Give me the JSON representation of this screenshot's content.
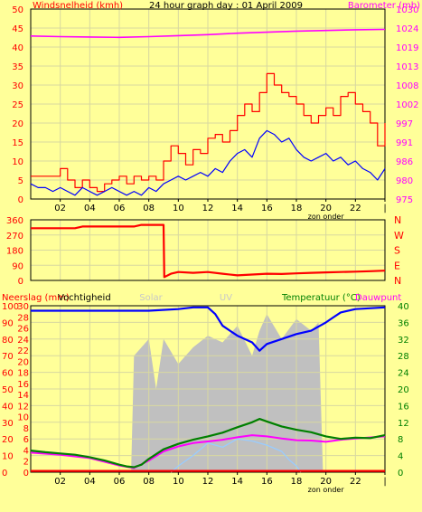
{
  "title": "24 hour graph day : 01 April 2009",
  "colors": {
    "background": "#ffff99",
    "plot_bg": "#ffff99",
    "grid": "#d8d8a0",
    "frame": "#000000",
    "wind": "#0000ff",
    "gust": "#ff0000",
    "pressure": "#ff00ff",
    "direction": "#ff0000",
    "humidity": "#0000ff",
    "solar": "#c0c0c0",
    "temperature": "#008000",
    "dewpoint": "#ff00ff",
    "apparent": "#99ccff",
    "rain": "#ff0000",
    "uv_label": "#c8c8c8"
  },
  "chart_data": [
    {
      "type": "line",
      "title": "24 hour graph day : 01 April 2009",
      "ylabel_left": "Windsnelheid (kmh)",
      "ylabel_right": "Barometer (mb)",
      "ylim": [
        0,
        50
      ],
      "yticks_left": [
        "0",
        "5",
        "10",
        "15",
        "20",
        "25",
        "30",
        "35",
        "40",
        "45",
        "50"
      ],
      "yticks_right": [
        "975",
        "980",
        "986",
        "991",
        "997",
        "1002",
        "1008",
        "1013",
        "1019",
        "1024",
        "1030"
      ],
      "right_ylim": [
        975,
        1030
      ],
      "x_range": [
        0,
        24
      ],
      "xticks": [
        "02",
        "04",
        "06",
        "08",
        "10",
        "12",
        "14",
        "16",
        "18",
        "20",
        "22",
        "|"
      ],
      "xlabel": "zon onder",
      "sunset_marker": 20,
      "series": [
        {
          "name": "wind",
          "axis": "left",
          "points": [
            [
              0,
              4
            ],
            [
              0.5,
              3
            ],
            [
              1,
              3
            ],
            [
              1.5,
              2
            ],
            [
              2,
              3
            ],
            [
              2.5,
              2
            ],
            [
              3,
              1
            ],
            [
              3.5,
              3
            ],
            [
              4,
              2
            ],
            [
              4.5,
              1
            ],
            [
              5,
              2
            ],
            [
              5.5,
              3
            ],
            [
              6,
              2
            ],
            [
              6.5,
              1
            ],
            [
              7,
              2
            ],
            [
              7.5,
              1
            ],
            [
              8,
              3
            ],
            [
              8.5,
              2
            ],
            [
              9,
              4
            ],
            [
              9.5,
              5
            ],
            [
              10,
              6
            ],
            [
              10.5,
              5
            ],
            [
              11,
              6
            ],
            [
              11.5,
              7
            ],
            [
              12,
              6
            ],
            [
              12.5,
              8
            ],
            [
              13,
              7
            ],
            [
              13.5,
              10
            ],
            [
              14,
              12
            ],
            [
              14.5,
              13
            ],
            [
              15,
              11
            ],
            [
              15.5,
              16
            ],
            [
              16,
              18
            ],
            [
              16.5,
              17
            ],
            [
              17,
              15
            ],
            [
              17.5,
              16
            ],
            [
              18,
              13
            ],
            [
              18.5,
              11
            ],
            [
              19,
              10
            ],
            [
              19.5,
              11
            ],
            [
              20,
              12
            ],
            [
              20.5,
              10
            ],
            [
              21,
              11
            ],
            [
              21.5,
              9
            ],
            [
              22,
              10
            ],
            [
              22.5,
              8
            ],
            [
              23,
              7
            ],
            [
              23.5,
              5
            ],
            [
              24,
              8
            ]
          ]
        },
        {
          "name": "gust",
          "axis": "left",
          "points": [
            [
              0,
              6
            ],
            [
              0.5,
              6
            ],
            [
              1,
              6
            ],
            [
              1.5,
              6
            ],
            [
              2,
              8
            ],
            [
              2.5,
              5
            ],
            [
              3,
              3
            ],
            [
              3.5,
              5
            ],
            [
              4,
              3
            ],
            [
              4.5,
              2
            ],
            [
              5,
              4
            ],
            [
              5.5,
              5
            ],
            [
              6,
              6
            ],
            [
              6.5,
              4
            ],
            [
              7,
              6
            ],
            [
              7.5,
              5
            ],
            [
              8,
              6
            ],
            [
              8.5,
              5
            ],
            [
              9,
              10
            ],
            [
              9.5,
              14
            ],
            [
              10,
              12
            ],
            [
              10.5,
              9
            ],
            [
              11,
              13
            ],
            [
              11.5,
              12
            ],
            [
              12,
              16
            ],
            [
              12.5,
              17
            ],
            [
              13,
              15
            ],
            [
              13.5,
              18
            ],
            [
              14,
              22
            ],
            [
              14.5,
              25
            ],
            [
              15,
              23
            ],
            [
              15.5,
              28
            ],
            [
              16,
              33
            ],
            [
              16.5,
              30
            ],
            [
              17,
              28
            ],
            [
              17.5,
              27
            ],
            [
              18,
              25
            ],
            [
              18.5,
              22
            ],
            [
              19,
              20
            ],
            [
              19.5,
              22
            ],
            [
              20,
              24
            ],
            [
              20.5,
              22
            ],
            [
              21,
              27
            ],
            [
              21.5,
              28
            ],
            [
              22,
              25
            ],
            [
              22.5,
              23
            ],
            [
              23,
              20
            ],
            [
              23.5,
              14
            ],
            [
              24,
              20
            ]
          ]
        },
        {
          "name": "pressure",
          "axis": "right",
          "points": [
            [
              0,
              1022.2
            ],
            [
              2,
              1022.0
            ],
            [
              4,
              1021.9
            ],
            [
              6,
              1021.8
            ],
            [
              8,
              1022.0
            ],
            [
              10,
              1022.3
            ],
            [
              12,
              1022.6
            ],
            [
              14,
              1023.0
            ],
            [
              16,
              1023.3
            ],
            [
              18,
              1023.6
            ],
            [
              20,
              1023.8
            ],
            [
              22,
              1024.0
            ],
            [
              24,
              1024.1
            ]
          ]
        }
      ]
    },
    {
      "type": "line",
      "ylabel_left": "",
      "yticks_left": [
        "0",
        "90",
        "180",
        "270",
        "360"
      ],
      "yticks_right": [
        "N",
        "E",
        "S",
        "W",
        "N"
      ],
      "ylim": [
        0,
        360
      ],
      "x_range": [
        0,
        24
      ],
      "series": [
        {
          "name": "direction",
          "points": [
            [
              0,
              310
            ],
            [
              3,
              310
            ],
            [
              3.5,
              320
            ],
            [
              7,
              320
            ],
            [
              7.5,
              330
            ],
            [
              9,
              330
            ],
            [
              9.05,
              20
            ],
            [
              9.5,
              40
            ],
            [
              10,
              50
            ],
            [
              11,
              45
            ],
            [
              12,
              50
            ],
            [
              13,
              40
            ],
            [
              14,
              30
            ],
            [
              15,
              35
            ],
            [
              16,
              40
            ],
            [
              17,
              38
            ],
            [
              18,
              42
            ],
            [
              19,
              45
            ],
            [
              20,
              48
            ],
            [
              21,
              50
            ],
            [
              22,
              52
            ],
            [
              23,
              55
            ],
            [
              24,
              58
            ]
          ]
        }
      ]
    },
    {
      "type": "line",
      "labels_top": [
        "Neerslag (mm)",
        "Vochtigheid",
        "Solar",
        "UV",
        "Temperatuur (°C)",
        "Dauwpunt"
      ],
      "yticks_left": [
        "0",
        "10",
        "20",
        "30",
        "40",
        "50",
        "60",
        "70",
        "80",
        "90",
        "100"
      ],
      "yticks_left_inner": [
        "0",
        "2",
        "4",
        "6",
        "8",
        "10",
        "12",
        "14",
        "16",
        "18",
        "20",
        "22",
        "24",
        "26",
        "28",
        "30"
      ],
      "yticks_right": [
        "0",
        "4",
        "8",
        "12",
        "16",
        "20",
        "24",
        "28",
        "32",
        "36",
        "40"
      ],
      "ylim": [
        0,
        100
      ],
      "right_ylim": [
        0,
        40
      ],
      "x_range": [
        0,
        24
      ],
      "xticks": [
        "02",
        "04",
        "06",
        "08",
        "10",
        "12",
        "14",
        "16",
        "18",
        "20",
        "22",
        "|"
      ],
      "xlabel": "zon onder",
      "series": [
        {
          "name": "humidity",
          "axis": "left",
          "points": [
            [
              0,
              97
            ],
            [
              4,
              97
            ],
            [
              8,
              97
            ],
            [
              10,
              98
            ],
            [
              11,
              99
            ],
            [
              12,
              99
            ],
            [
              12.5,
              95
            ],
            [
              13,
              88
            ],
            [
              14,
              82
            ],
            [
              15,
              78
            ],
            [
              15.5,
              73
            ],
            [
              16,
              77
            ],
            [
              17,
              80
            ],
            [
              18,
              83
            ],
            [
              19,
              85
            ],
            [
              20,
              90
            ],
            [
              20.5,
              93
            ],
            [
              21,
              96
            ],
            [
              22,
              98
            ],
            [
              24,
              99
            ]
          ]
        },
        {
          "name": "solar",
          "axis": "left",
          "points": [
            [
              6.8,
              0
            ],
            [
              7,
              70
            ],
            [
              8,
              80
            ],
            [
              8.5,
              50
            ],
            [
              9,
              80
            ],
            [
              10,
              65
            ],
            [
              11,
              75
            ],
            [
              12,
              82
            ],
            [
              13,
              78
            ],
            [
              14,
              88
            ],
            [
              15,
              70
            ],
            [
              15.5,
              85
            ],
            [
              16,
              95
            ],
            [
              17,
              80
            ],
            [
              18,
              92
            ],
            [
              19,
              85
            ],
            [
              19.5,
              90
            ],
            [
              19.8,
              0
            ]
          ]
        },
        {
          "name": "temperature",
          "axis": "right",
          "points": [
            [
              0,
              5.2
            ],
            [
              1,
              4.8
            ],
            [
              2,
              4.5
            ],
            [
              3,
              4.2
            ],
            [
              4,
              3.6
            ],
            [
              5,
              2.8
            ],
            [
              6,
              1.8
            ],
            [
              6.5,
              1.4
            ],
            [
              7,
              1.2
            ],
            [
              7.5,
              1.8
            ],
            [
              8,
              3.2
            ],
            [
              9,
              5.5
            ],
            [
              10,
              6.8
            ],
            [
              11,
              7.8
            ],
            [
              12,
              8.6
            ],
            [
              13,
              9.5
            ],
            [
              14,
              10.8
            ],
            [
              15,
              12.0
            ],
            [
              15.5,
              12.8
            ],
            [
              16,
              12.2
            ],
            [
              17,
              11.0
            ],
            [
              18,
              10.2
            ],
            [
              19,
              9.6
            ],
            [
              20,
              8.6
            ],
            [
              21,
              8.0
            ],
            [
              22,
              8.3
            ],
            [
              23,
              8.2
            ],
            [
              24,
              8.9
            ]
          ]
        },
        {
          "name": "dewpoint",
          "axis": "right",
          "points": [
            [
              0,
              4.7
            ],
            [
              2,
              4.2
            ],
            [
              4,
              3.4
            ],
            [
              6,
              1.6
            ],
            [
              7,
              1.0
            ],
            [
              8,
              2.8
            ],
            [
              9,
              5.0
            ],
            [
              10,
              6.2
            ],
            [
              11,
              7.0
            ],
            [
              12,
              7.4
            ],
            [
              13,
              7.8
            ],
            [
              14,
              8.4
            ],
            [
              15,
              8.9
            ],
            [
              16,
              8.6
            ],
            [
              17,
              8.1
            ],
            [
              18,
              7.7
            ],
            [
              19,
              7.6
            ],
            [
              20,
              7.3
            ],
            [
              21,
              7.8
            ],
            [
              22,
              8.1
            ],
            [
              24,
              8.6
            ]
          ]
        },
        {
          "name": "apparent",
          "axis": "right",
          "points": [
            [
              9.5,
              0
            ],
            [
              10,
              1.5
            ],
            [
              11,
              4
            ],
            [
              12,
              7
            ],
            [
              13,
              6
            ],
            [
              14,
              8
            ],
            [
              15,
              7.5
            ],
            [
              16,
              6.5
            ],
            [
              17,
              5
            ],
            [
              17.5,
              3
            ],
            [
              18,
              1.5
            ],
            [
              18.3,
              0
            ]
          ]
        },
        {
          "name": "rain",
          "axis": "right",
          "points": [
            [
              0,
              0.3
            ],
            [
              24,
              0.3
            ]
          ]
        }
      ]
    }
  ]
}
